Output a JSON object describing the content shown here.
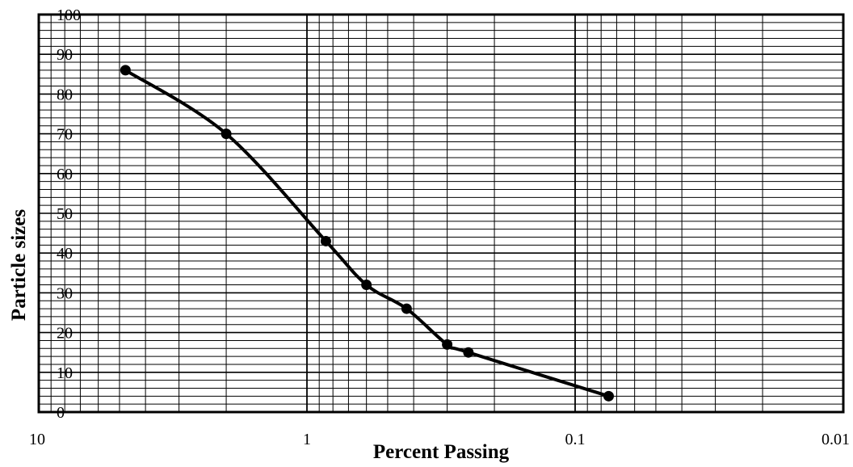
{
  "chart_data": {
    "type": "scatter",
    "title": "",
    "xlabel": "Percent Passing",
    "ylabel": "Particle sizes",
    "x_scale": "log",
    "x_reversed": true,
    "xlim": [
      10,
      0.01
    ],
    "ylim": [
      0,
      100
    ],
    "grid": true,
    "x_ticks": [
      {
        "value": 10,
        "label": "10"
      },
      {
        "value": 1,
        "label": "1"
      },
      {
        "value": 0.1,
        "label": "0.1"
      },
      {
        "value": 0.01,
        "label": "0.01"
      }
    ],
    "y_ticks": [
      {
        "value": 0,
        "label": "0"
      },
      {
        "value": 10,
        "label": "10"
      },
      {
        "value": 20,
        "label": "20"
      },
      {
        "value": 30,
        "label": "30"
      },
      {
        "value": 40,
        "label": "40"
      },
      {
        "value": 50,
        "label": "50"
      },
      {
        "value": 60,
        "label": "60"
      },
      {
        "value": 70,
        "label": "70"
      },
      {
        "value": 80,
        "label": "80"
      },
      {
        "value": 90,
        "label": "90"
      },
      {
        "value": 100,
        "label": "100"
      }
    ],
    "series": [
      {
        "line_color": "#000000",
        "marker": "circle",
        "points": [
          {
            "x": 4.75,
            "y": 86
          },
          {
            "x": 2.0,
            "y": 70
          },
          {
            "x": 0.85,
            "y": 43
          },
          {
            "x": 0.6,
            "y": 32
          },
          {
            "x": 0.425,
            "y": 26
          },
          {
            "x": 0.3,
            "y": 17
          },
          {
            "x": 0.25,
            "y": 15
          },
          {
            "x": 0.075,
            "y": 4
          }
        ]
      }
    ]
  }
}
